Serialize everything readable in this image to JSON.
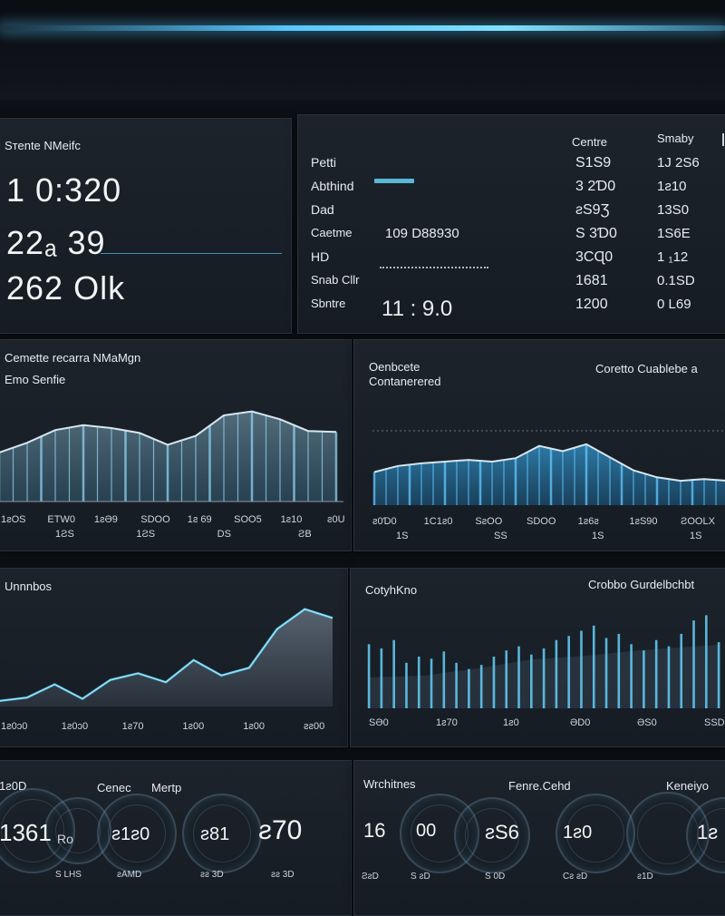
{
  "kpi_panel": {
    "title": "Ѕтеnte NMeifc",
    "values": [
      "1 0:320",
      "22ₐ 39",
      "262 Olk"
    ]
  },
  "list_panel": {
    "headers": [
      "Centre",
      "Smaby"
    ],
    "rows": [
      {
        "label": "Petti",
        "extra": "",
        "c1": "S1S9",
        "c2": "1J 2S6"
      },
      {
        "label": "Abthind",
        "extra": "",
        "c1": "3 2Ɗ0",
        "c2": "1ƨ10"
      },
      {
        "label": "Dad",
        "extra": "",
        "c1": "ƨS9Ʒ",
        "c2": "13S0"
      },
      {
        "label": "Caetme",
        "extra": "109 D88930",
        "c1": "S 3Ɗ0",
        "c2": "1S6E"
      },
      {
        "label": "HD",
        "extra": "",
        "c1": "3CɊ0",
        "c2": "1 ₁12"
      },
      {
        "label": "Snab Cllr",
        "extra": "",
        "c1": "1681",
        "c2": "0.1SD"
      },
      {
        "label": "Sbntre",
        "extra": "11 : 9.0",
        "c1": "1200",
        "c2": "0 L69"
      }
    ]
  },
  "area_left": {
    "title": "Cemette recarra NMaMgn",
    "subtitle": "Emo Senfie",
    "ticks_top": [
      "1ƨOS",
      "ETW0",
      "1ƨƏ9",
      "SDOO",
      "1ƨ 69",
      "SOO5",
      "1ƨ10",
      "ƨ0U"
    ],
    "ticks_bottom": [
      "1ƧS",
      "1ƧS",
      "DS",
      "ƧB"
    ],
    "chart_data": {
      "type": "area",
      "values": [
        50,
        60,
        73,
        78,
        75,
        70,
        58,
        67,
        88,
        92,
        84,
        72,
        71
      ]
    }
  },
  "area_right": {
    "title": "Oenbcete",
    "subtitle": "Contanerered",
    "right_label": "Coretto Cuablebe a",
    "ticks_top": [
      "ƨ0Ɗ0",
      "1C1ƨ0",
      "SƨOO",
      "SDOO",
      "1ƨ6ƨ",
      "1ƨS90",
      "ƧOOLX"
    ],
    "ticks_bottom": [
      "1S",
      "SS",
      "1S",
      "1S"
    ],
    "chart_data": {
      "type": "area",
      "values": [
        38,
        45,
        48,
        50,
        52,
        50,
        54,
        68,
        62,
        70,
        55,
        40,
        32,
        28,
        30,
        28
      ]
    }
  },
  "line_left": {
    "title": "Unnnbos",
    "ticks": [
      "1ƨ0ɔ0",
      "1ƨ0ɔ0",
      "1ƨ70",
      "1ƨ00",
      "1ƨ00",
      "ƨƨ00"
    ],
    "chart_data": {
      "type": "line",
      "values": [
        5,
        8,
        20,
        7,
        24,
        30,
        22,
        42,
        28,
        35,
        70,
        88,
        80
      ]
    }
  },
  "bar_right": {
    "title": "CotyhKno",
    "right_label": "Crobbo Gurdelbchbt",
    "ticks": [
      "SƏ0",
      "1ƨ70",
      "1ƨ0",
      "ƏD0",
      "ƏS0",
      "SSD"
    ],
    "chart_data": {
      "type": "bar",
      "values": [
        62,
        58,
        66,
        44,
        50,
        48,
        55,
        44,
        38,
        42,
        50,
        56,
        60,
        52,
        58,
        66,
        70,
        75,
        80,
        68,
        72,
        62,
        56,
        66,
        60,
        72,
        85,
        90,
        64
      ]
    }
  },
  "gauges_left": {
    "top_labels": [
      "1ƨ0D",
      "Cenec",
      "Mertp"
    ],
    "values": [
      "1361",
      "ƨ1ƨ0",
      "ƨ81",
      "ƨ70"
    ],
    "value_small": "Ro",
    "subs": [
      "S LHS",
      "ƨAMD",
      "ƨƨ 3D",
      "ƨƨ 3D"
    ]
  },
  "gauges_right": {
    "top_labels": [
      "Wrchitnes",
      "Fenre.Cehd",
      "Keneiyo"
    ],
    "values": [
      "16",
      "00",
      "ƨS6",
      "1ƨ0",
      "1ƨ"
    ],
    "subs": [
      "ƧƨD",
      "S ƨD",
      "S 0D",
      "Cƨ ƨD",
      "ƨ1D"
    ]
  }
}
